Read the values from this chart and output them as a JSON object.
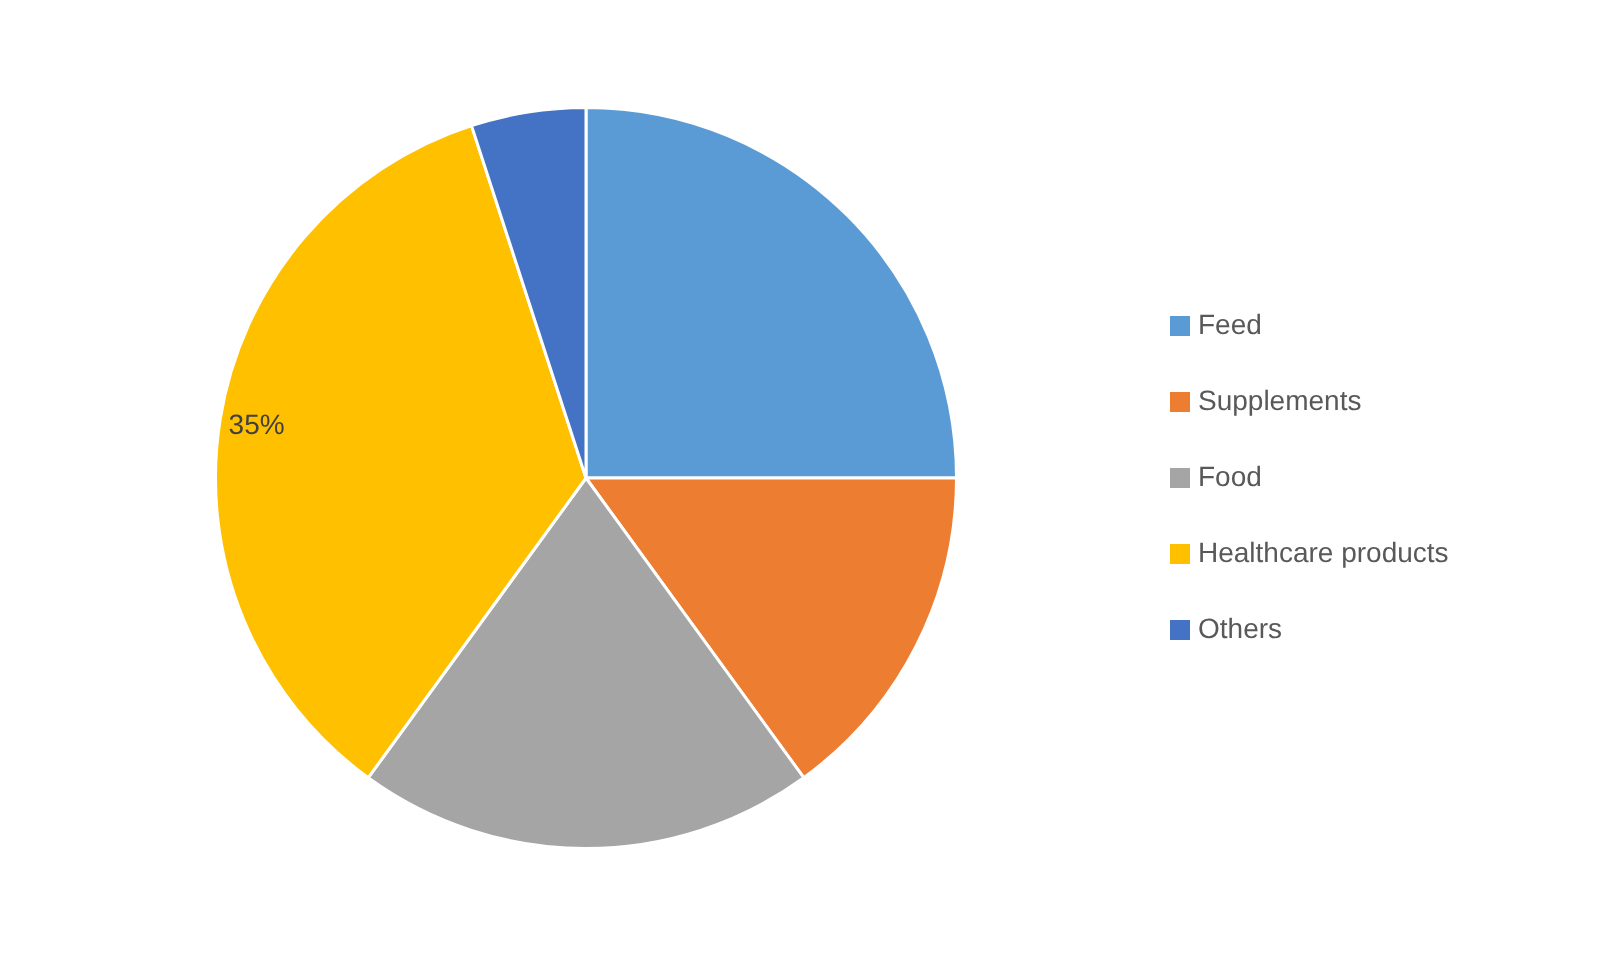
{
  "chart_data": {
    "type": "pie",
    "categories": [
      "Feed",
      "Supplements",
      "Food",
      "Healthcare products",
      "Others"
    ],
    "values": [
      25,
      15,
      20,
      35,
      5
    ],
    "colors": [
      "#5b9bd5",
      "#ed7d31",
      "#a5a5a5",
      "#ffc000",
      "#4472c4"
    ],
    "value_labels": [
      null,
      null,
      null,
      "35%",
      null
    ],
    "legend": "right"
  }
}
